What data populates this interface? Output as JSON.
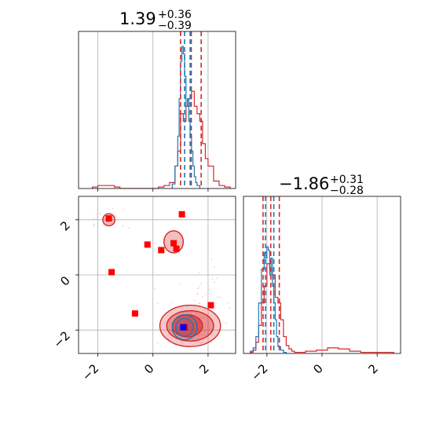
{
  "chart_data": {
    "type": "corner",
    "colors": {
      "red": "#d62728",
      "blue": "#1f77b4",
      "grid": "#b0b0b0",
      "marker_blue": "#0000ff",
      "marker_red": "#ff0000"
    },
    "param1": {
      "title": {
        "median": "1.39",
        "plus": "+0.36",
        "minus": "−0.39"
      },
      "xlim": [
        -2.7,
        3.0
      ],
      "ticks": [
        -2,
        0,
        2
      ],
      "tick_labels": [
        "−2",
        "0",
        "2"
      ],
      "hist_red": {
        "bins": [
          -2.2,
          -2.0,
          -1.8,
          -1.6,
          -1.4,
          -1.2,
          -1.0,
          -0.8,
          -0.6,
          -0.4,
          -0.2,
          0.0,
          0.2,
          0.4,
          0.6,
          0.8,
          0.9,
          1.0,
          1.1,
          1.2,
          1.3,
          1.4,
          1.5,
          1.6,
          1.7,
          1.8,
          1.9,
          2.0,
          2.2,
          2.4,
          2.6,
          2.8
        ],
        "values": [
          0.01,
          0.02,
          0.02,
          0.02,
          0.01,
          0,
          0,
          0,
          0,
          0,
          0,
          0,
          0.01,
          0.02,
          0.04,
          0.15,
          0.25,
          0.5,
          0.45,
          0.55,
          0.6,
          0.65,
          0.55,
          0.5,
          0.45,
          0.3,
          0.2,
          0.15,
          0.05,
          0.02,
          0.01
        ]
      },
      "hist_blue": {
        "bins": [
          0.7,
          0.8,
          0.9,
          0.95,
          1.0,
          1.05,
          1.1,
          1.15,
          1.2,
          1.25,
          1.3,
          1.35,
          1.4,
          1.45,
          1.5,
          1.55,
          1.6,
          1.7
        ],
        "values": [
          0.03,
          0.15,
          0.35,
          0.6,
          0.85,
          0.95,
          0.9,
          0.75,
          0.55,
          0.6,
          0.45,
          0.35,
          0.25,
          0.15,
          0.08,
          0.04,
          0.02
        ]
      },
      "hist_ymax": 1.05,
      "quantiles_red": [
        1.0,
        1.39,
        1.75
      ],
      "quantiles_blue": [
        1.15,
        1.35
      ]
    },
    "param2": {
      "title": {
        "median": "−1.86",
        "plus": "+0.31",
        "minus": "−0.28"
      },
      "xlim": [
        -2.85,
        2.85
      ],
      "ticks": [
        -2,
        0,
        2
      ],
      "tick_labels": [
        "−2",
        "0",
        "2"
      ],
      "hist_red": {
        "bins": [
          -2.6,
          -2.5,
          -2.4,
          -2.3,
          -2.2,
          -2.1,
          -2.0,
          -1.9,
          -1.8,
          -1.7,
          -1.6,
          -1.5,
          -1.4,
          -1.3,
          -1.2,
          -1.1,
          -1.0,
          -0.8,
          -0.6,
          -0.2,
          0.2,
          0.6,
          1.0,
          1.4,
          1.8,
          2.2,
          2.6
        ],
        "values": [
          0.01,
          0.03,
          0.1,
          0.25,
          0.45,
          0.6,
          0.8,
          0.75,
          0.7,
          0.5,
          0.45,
          0.3,
          0.15,
          0.07,
          0.04,
          0.02,
          0.01,
          0.01,
          0.02,
          0.03,
          0.05,
          0.04,
          0.02,
          0.01,
          0.01,
          0.01
        ]
      },
      "hist_blue": {
        "bins": [
          -2.6,
          -2.5,
          -2.4,
          -2.3,
          -2.2,
          -2.1,
          -2.05,
          -2.0,
          -1.95,
          -1.9,
          -1.85,
          -1.8,
          -1.75,
          -1.7,
          -1.65,
          -1.6,
          -1.5,
          -1.4,
          -1.3
        ],
        "values": [
          0.02,
          0.05,
          0.15,
          0.45,
          0.75,
          0.9,
          0.85,
          0.95,
          0.92,
          0.7,
          0.85,
          0.6,
          0.45,
          0.3,
          0.15,
          0.06,
          0.03,
          0.01
        ]
      },
      "hist_ymax": 1.4,
      "quantiles_red": [
        -2.14,
        -1.86,
        -1.55
      ],
      "quantiles_blue": [
        -2.05,
        -1.75
      ]
    },
    "joint": {
      "xlim": [
        -2.7,
        3.0
      ],
      "ylim": [
        -2.85,
        2.85
      ],
      "red_squares": [
        [
          -1.6,
          2.05
        ],
        [
          1.05,
          2.2
        ],
        [
          -0.2,
          1.1
        ],
        [
          0.3,
          0.9
        ],
        [
          0.75,
          1.15
        ],
        [
          0.85,
          0.95
        ],
        [
          -1.5,
          0.1
        ],
        [
          -0.65,
          -1.4
        ],
        [
          2.1,
          -1.1
        ],
        [
          1.15,
          -1.9
        ]
      ],
      "blue_square": [
        1.1,
        -1.9
      ]
    }
  }
}
